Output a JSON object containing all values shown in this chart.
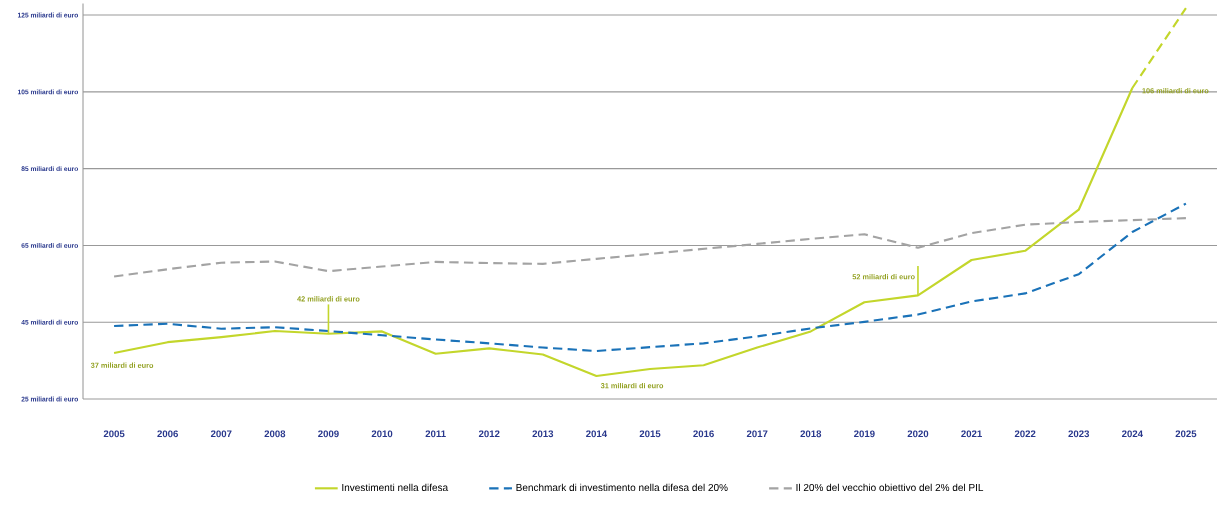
{
  "chart_data": {
    "type": "line",
    "categories": [
      "2005",
      "2006",
      "2007",
      "2008",
      "2009",
      "2010",
      "2011",
      "2012",
      "2013",
      "2014",
      "2015",
      "2016",
      "2017",
      "2018",
      "2019",
      "2020",
      "2021",
      "2022",
      "2023",
      "2024",
      "2025"
    ],
    "series": [
      {
        "name": "Investimenti nella difesa",
        "color": "#c3d62b",
        "line_style": "solid",
        "values": [
          37,
          39.8,
          41.1,
          42.7,
          42,
          42.6,
          36.8,
          38.2,
          36.6,
          31,
          32.8,
          33.8,
          38.4,
          42.6,
          50.2,
          52,
          61.2,
          63.6,
          74.3,
          106,
          null
        ]
      },
      {
        "color": "#c3d62b",
        "line_style": "dashed",
        "values": [
          null,
          null,
          null,
          null,
          null,
          null,
          null,
          null,
          null,
          null,
          null,
          null,
          null,
          null,
          null,
          null,
          null,
          null,
          null,
          106,
          126.8
        ]
      },
      {
        "name": "Benchmark di investimento nella difesa del 20%",
        "color": "#1a72b8",
        "line_style": "dashed",
        "values": [
          44,
          44.6,
          43.3,
          43.7,
          42.7,
          41.6,
          40.5,
          39.5,
          38.4,
          37.5,
          38.5,
          39.5,
          41.3,
          43.4,
          45.1,
          47,
          50.4,
          52.5,
          57.5,
          68.5,
          75.9
        ]
      },
      {
        "name": "Il 20% del vecchio obiettivo del 2% del PIL",
        "color": "#a3a3a3",
        "line_style": "dashed",
        "values": [
          56.9,
          58.8,
          60.5,
          60.8,
          58.3,
          59.5,
          60.7,
          60.4,
          60.2,
          61.5,
          62.8,
          64.1,
          65.4,
          66.7,
          67.9,
          64.4,
          68.2,
          70.4,
          71.1,
          71.6,
          72.1
        ]
      }
    ],
    "ylim": [
      25,
      128
    ],
    "yticks": [
      {
        "value": 25,
        "label": "25 miliardi di euro"
      },
      {
        "value": 45,
        "label": "45 miliardi di euro"
      },
      {
        "value": 65,
        "label": "65 miliardi di euro"
      },
      {
        "value": 85,
        "label": "85 miliardi di euro"
      },
      {
        "value": 105,
        "label": "105 miliardi di euro"
      },
      {
        "value": 125,
        "label": "125 miliardi di euro"
      }
    ],
    "grid": "y",
    "legend": "bottom",
    "marker": "none",
    "annotations": [
      {
        "text": "37 miliardi di euro",
        "x": "2005",
        "y": 37
      },
      {
        "text": "42 miliardi di euro",
        "x": "2009",
        "y": 42
      },
      {
        "text": "31 miliardi di euro",
        "x": "2014",
        "y": 31
      },
      {
        "text": "52 miliardi di euro",
        "x": "2020",
        "y": 52
      },
      {
        "text": "106 miliardi di euro",
        "x": "2024",
        "y": 106
      }
    ]
  }
}
